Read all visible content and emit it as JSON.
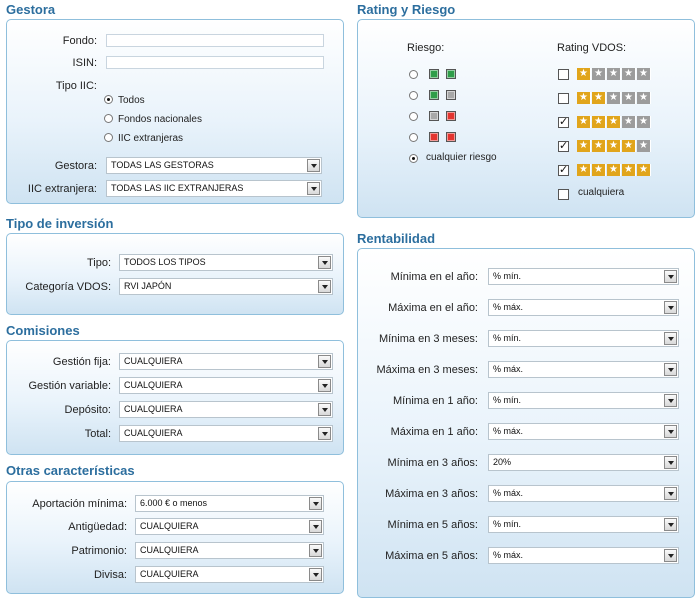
{
  "colors": {
    "title": "#2c6e9e",
    "star_on": "#e1a51b",
    "star_off": "#9c9c9c",
    "sq_green": "#2f9d49",
    "sq_gray": "#a8a8a8",
    "sq_red": "#e3342f"
  },
  "gestora": {
    "title": "Gestora",
    "fondo_label": "Fondo:",
    "fondo_value": "",
    "isin_label": "ISIN:",
    "isin_value": "",
    "tipo_label": "Tipo IIC:",
    "tipo_options": [
      "Todos",
      "Fondos nacionales",
      "IIC extranjeras"
    ],
    "tipo_selected": 0,
    "gestora_label": "Gestora:",
    "gestora_value": "TODAS LAS GESTORAS",
    "iic_label": "IIC extranjera:",
    "iic_value": "TODAS LAS IIC EXTRANJERAS"
  },
  "tipo_inversion": {
    "title": "Tipo de inversión",
    "tipo_label": "Tipo:",
    "tipo_value": "TODOS LOS TIPOS",
    "categoria_label": "Categoría VDOS:",
    "categoria_value": "RVI JAPÓN"
  },
  "comisiones": {
    "title": "Comisiones",
    "rows": [
      {
        "label": "Gestión fija:",
        "value": "CUALQUIERA"
      },
      {
        "label": "Gestión variable:",
        "value": "CUALQUIERA"
      },
      {
        "label": "Depósito:",
        "value": "CUALQUIERA"
      },
      {
        "label": "Total:",
        "value": "CUALQUIERA"
      }
    ]
  },
  "otras": {
    "title": "Otras características",
    "rows": [
      {
        "label": "Aportación mínima:",
        "value": "6.000 € o menos"
      },
      {
        "label": "Antigüedad:",
        "value": "CUALQUIERA"
      },
      {
        "label": "Patrimonio:",
        "value": "CUALQUIERA"
      },
      {
        "label": "Divisa:",
        "value": "CUALQUIERA"
      }
    ]
  },
  "rating": {
    "title": "Rating y Riesgo",
    "riesgo_header": "Riesgo:",
    "rating_header": "Rating VDOS:",
    "riesgo_options": [
      {
        "squares": [
          "green",
          "green"
        ]
      },
      {
        "squares": [
          "green",
          "gray"
        ]
      },
      {
        "squares": [
          "gray",
          "red"
        ]
      },
      {
        "squares": [
          "red",
          "red"
        ]
      }
    ],
    "riesgo_any_label": "cualquier riesgo",
    "riesgo_selected": 4,
    "rating_options": [
      {
        "stars_on": 1,
        "checked": false
      },
      {
        "stars_on": 2,
        "checked": false
      },
      {
        "stars_on": 3,
        "checked": true
      },
      {
        "stars_on": 4,
        "checked": true
      },
      {
        "stars_on": 5,
        "checked": true
      }
    ],
    "rating_any_label": "cualquiera",
    "rating_any_checked": false
  },
  "rentabilidad": {
    "title": "Rentabilidad",
    "rows": [
      {
        "label": "Mínima en el año:",
        "value": "% mín."
      },
      {
        "label": "Máxima en el año:",
        "value": "% máx."
      },
      {
        "label": "Mínima en 3 meses:",
        "value": "% mín."
      },
      {
        "label": "Máxima en 3 meses:",
        "value": "% máx."
      },
      {
        "label": "Mínima en 1 año:",
        "value": "% mín."
      },
      {
        "label": "Máxima en 1 año:",
        "value": "% máx."
      },
      {
        "label": "Mínima en 3 años:",
        "value": "20%"
      },
      {
        "label": "Máxima en 3 años:",
        "value": "% máx."
      },
      {
        "label": "Mínima en 5 años:",
        "value": "% mín."
      },
      {
        "label": "Máxima en 5 años:",
        "value": "% máx."
      }
    ]
  }
}
